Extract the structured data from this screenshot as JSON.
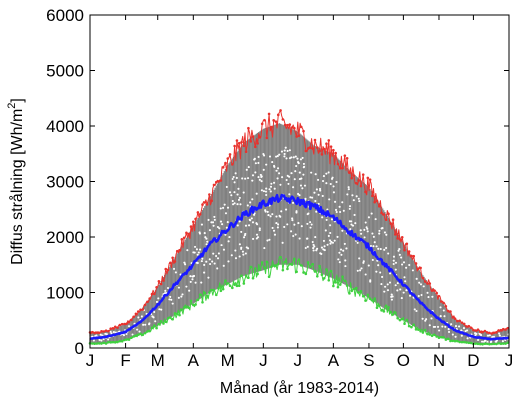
{
  "chart_data": {
    "type": "line",
    "title": "",
    "xlabel": "Månad (år 1983-2014)",
    "ylabel": "Diffus strålning [Wh/m²]",
    "ylabel_parts": {
      "text": "Diffus strålning [Wh/m",
      "sup": "2",
      "close": "]"
    },
    "ylim": [
      0,
      6000
    ],
    "yticks": [
      0,
      1000,
      2000,
      3000,
      4000,
      5000,
      6000
    ],
    "xlim": [
      1,
      366
    ],
    "month_ticks": [
      {
        "day": 1,
        "label": "J"
      },
      {
        "day": 32,
        "label": "F"
      },
      {
        "day": 60,
        "label": "M"
      },
      {
        "day": 91,
        "label": "A"
      },
      {
        "day": 121,
        "label": "M"
      },
      {
        "day": 152,
        "label": "J"
      },
      {
        "day": 182,
        "label": "J"
      },
      {
        "day": 213,
        "label": "A"
      },
      {
        "day": 244,
        "label": "S"
      },
      {
        "day": 274,
        "label": "O"
      },
      {
        "day": 305,
        "label": "N"
      },
      {
        "day": 335,
        "label": "D"
      },
      {
        "day": 366,
        "label": "J"
      }
    ],
    "grid": false,
    "legend": "none",
    "colors": {
      "max": "#e8322d",
      "mean": "#1a1aff",
      "min": "#3fd13f",
      "years": "#808080"
    },
    "series": [
      {
        "role": "max",
        "x_day": [
          1,
          15,
          32,
          46,
          60,
          74,
          91,
          105,
          121,
          135,
          152,
          166,
          182,
          196,
          213,
          227,
          244,
          258,
          274,
          288,
          305,
          319,
          335,
          350,
          366
        ],
        "values": [
          270,
          300,
          430,
          700,
          1100,
          1600,
          2200,
          2700,
          3300,
          3700,
          3950,
          4050,
          3900,
          3650,
          3500,
          3200,
          2900,
          2450,
          1900,
          1400,
          900,
          520,
          330,
          270,
          350
        ]
      },
      {
        "role": "mean",
        "x_day": [
          1,
          15,
          32,
          46,
          60,
          74,
          91,
          105,
          121,
          135,
          152,
          166,
          182,
          196,
          213,
          227,
          244,
          258,
          274,
          288,
          305,
          319,
          335,
          350,
          366
        ],
        "values": [
          170,
          200,
          290,
          480,
          780,
          1120,
          1500,
          1850,
          2150,
          2400,
          2600,
          2700,
          2650,
          2550,
          2350,
          2100,
          1820,
          1500,
          1150,
          830,
          520,
          320,
          200,
          160,
          180
        ]
      },
      {
        "role": "min",
        "x_day": [
          1,
          15,
          32,
          46,
          60,
          74,
          91,
          105,
          121,
          135,
          152,
          166,
          182,
          196,
          213,
          227,
          244,
          258,
          274,
          288,
          305,
          319,
          335,
          350,
          366
        ],
        "values": [
          80,
          90,
          140,
          240,
          400,
          580,
          800,
          1000,
          1150,
          1300,
          1400,
          1500,
          1500,
          1400,
          1250,
          1100,
          900,
          700,
          500,
          330,
          200,
          120,
          80,
          70,
          90
        ]
      }
    ]
  }
}
